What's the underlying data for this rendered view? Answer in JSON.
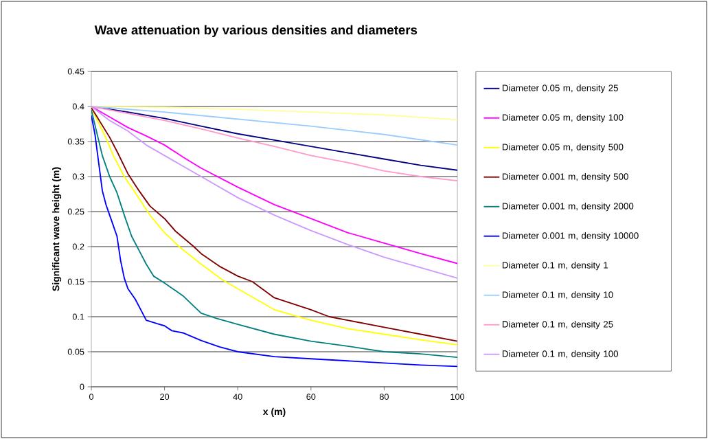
{
  "chart_data": {
    "type": "line",
    "title": "Wave attenuation by various densities and diameters",
    "xlabel": "x (m)",
    "ylabel": "Significant wave height (m)",
    "xlim": [
      0,
      100
    ],
    "ylim": [
      0,
      0.45
    ],
    "xticks": [
      0,
      20,
      40,
      60,
      80,
      100
    ],
    "yticks": [
      0,
      0.05,
      0.1,
      0.15,
      0.2,
      0.25,
      0.3,
      0.35,
      0.4,
      0.45
    ],
    "grid": "y",
    "legend": "right",
    "marker": "none",
    "line_style": "solid",
    "series": [
      {
        "name": "Diameter 0.05 m, density 25",
        "color": "#000080",
        "x": [
          0,
          10,
          20,
          30,
          40,
          50,
          60,
          70,
          80,
          90,
          100
        ],
        "values": [
          0.4,
          0.392,
          0.383,
          0.372,
          0.361,
          0.352,
          0.343,
          0.334,
          0.325,
          0.316,
          0.309
        ]
      },
      {
        "name": "Diameter 0.05 m, density 100",
        "color": "#ff00ff",
        "x": [
          0,
          5,
          10,
          15,
          20,
          25,
          30,
          40,
          50,
          60,
          70,
          80,
          90,
          100
        ],
        "values": [
          0.4,
          0.385,
          0.37,
          0.358,
          0.345,
          0.328,
          0.312,
          0.285,
          0.26,
          0.24,
          0.22,
          0.205,
          0.19,
          0.176
        ]
      },
      {
        "name": "Diameter 0.05 m, density 500",
        "color": "#ffff00",
        "x": [
          0,
          4,
          6,
          9,
          12,
          16,
          20,
          24,
          30,
          36,
          40,
          50,
          60,
          70,
          80,
          90,
          100
        ],
        "values": [
          0.398,
          0.355,
          0.33,
          0.3,
          0.277,
          0.245,
          0.22,
          0.2,
          0.175,
          0.152,
          0.14,
          0.11,
          0.095,
          0.083,
          0.075,
          0.067,
          0.06
        ]
      },
      {
        "name": "Diameter 0.001 m, density 500",
        "color": "#800000",
        "x": [
          0,
          1,
          5,
          7,
          10,
          13,
          16,
          20,
          23,
          28,
          30,
          35,
          40,
          44,
          50,
          60,
          65,
          70,
          80,
          90,
          100
        ],
        "values": [
          0.398,
          0.39,
          0.356,
          0.336,
          0.304,
          0.28,
          0.258,
          0.24,
          0.222,
          0.2,
          0.19,
          0.172,
          0.158,
          0.15,
          0.127,
          0.11,
          0.1,
          0.095,
          0.085,
          0.075,
          0.065
        ]
      },
      {
        "name": "Diameter 0.001 m, density 2000",
        "color": "#008080",
        "x": [
          0,
          3,
          5,
          7,
          9,
          11,
          13,
          15,
          17,
          20,
          25,
          30,
          34,
          40,
          50,
          60,
          70,
          80,
          90,
          100
        ],
        "values": [
          0.395,
          0.33,
          0.3,
          0.277,
          0.245,
          0.215,
          0.195,
          0.175,
          0.158,
          0.148,
          0.13,
          0.105,
          0.098,
          0.089,
          0.075,
          0.065,
          0.058,
          0.05,
          0.047,
          0.042
        ]
      },
      {
        "name": "Diameter 0.001 m, density 10000",
        "color": "#0000ff",
        "x": [
          0,
          1,
          2,
          3,
          4,
          5,
          6,
          7,
          8,
          9,
          10,
          12,
          14,
          15,
          18,
          20,
          22,
          25,
          30,
          35,
          40,
          50,
          60,
          70,
          80,
          90,
          100
        ],
        "values": [
          0.387,
          0.36,
          0.32,
          0.28,
          0.26,
          0.245,
          0.23,
          0.215,
          0.18,
          0.155,
          0.14,
          0.125,
          0.105,
          0.095,
          0.09,
          0.087,
          0.08,
          0.077,
          0.066,
          0.057,
          0.05,
          0.043,
          0.04,
          0.037,
          0.034,
          0.031,
          0.029
        ]
      },
      {
        "name": "Diameter 0.1 m, density 1",
        "color": "#ffff99",
        "x": [
          0,
          20,
          40,
          60,
          80,
          100
        ],
        "values": [
          0.4,
          0.399,
          0.396,
          0.392,
          0.388,
          0.381
        ]
      },
      {
        "name": "Diameter 0.1 m, density 10",
        "color": "#99ccff",
        "x": [
          0,
          20,
          40,
          60,
          80,
          100
        ],
        "values": [
          0.4,
          0.392,
          0.382,
          0.372,
          0.36,
          0.345
        ]
      },
      {
        "name": "Diameter 0.1 m, density 25",
        "color": "#ff99cc",
        "x": [
          0,
          10,
          20,
          30,
          40,
          50,
          60,
          70,
          80,
          90,
          100
        ],
        "values": [
          0.4,
          0.39,
          0.38,
          0.368,
          0.355,
          0.343,
          0.33,
          0.32,
          0.308,
          0.3,
          0.294
        ]
      },
      {
        "name": "Diameter 0.1 m, density 100",
        "color": "#cc99ff",
        "x": [
          0,
          5,
          10,
          15,
          20,
          25,
          30,
          40,
          50,
          60,
          70,
          80,
          90,
          100
        ],
        "values": [
          0.4,
          0.38,
          0.365,
          0.345,
          0.33,
          0.315,
          0.3,
          0.27,
          0.245,
          0.223,
          0.203,
          0.185,
          0.17,
          0.155
        ]
      }
    ]
  }
}
